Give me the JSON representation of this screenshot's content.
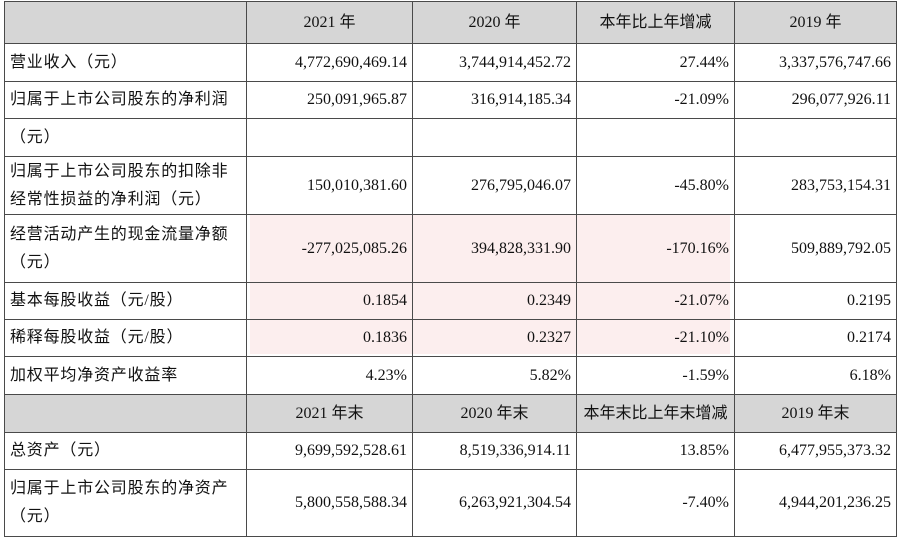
{
  "sections": [
    {
      "header": [
        "2021 年",
        "2020 年",
        "本年比上年增减",
        "2019 年"
      ],
      "rows": [
        [
          "营业收入（元）",
          "4,772,690,469.14",
          "3,744,914,452.72",
          "27.44%",
          "3,337,576,747.66"
        ],
        [
          "归属于上市公司股东的净利润",
          "250,091,965.87",
          "316,914,185.34",
          "-21.09%",
          "296,077,926.11"
        ],
        [
          "（元）"
        ],
        [
          "归属于上市公司股东的扣除非经常性损益的净利润（元）",
          "150,010,381.60",
          "276,795,046.07",
          "-45.80%",
          "283,753,154.31"
        ],
        [
          "经营活动产生的现金流量净额（元）",
          "-277,025,085.26",
          "394,828,331.90",
          "-170.16%",
          "509,889,792.05"
        ],
        [
          "基本每股收益（元/股）",
          "0.1854",
          "0.2349",
          "-21.07%",
          "0.2195"
        ],
        [
          "稀释每股收益（元/股）",
          "0.1836",
          "0.2327",
          "-21.10%",
          "0.2174"
        ],
        [
          "加权平均净资产收益率",
          "4.23%",
          "5.82%",
          "-1.59%",
          "6.18%"
        ]
      ]
    },
    {
      "header": [
        "2021 年末",
        "2020 年末",
        "本年末比上年末增减",
        "2019 年末"
      ],
      "rows": [
        [
          "总资产（元）",
          "9,699,592,528.61",
          "8,519,336,914.11",
          "13.85%",
          "6,477,955,373.32"
        ],
        [
          "归属于上市公司股东的净资产（元）",
          "5,800,558,588.34",
          "6,263,921,304.54",
          "-7.40%",
          "4,944,201,236.25"
        ]
      ]
    }
  ]
}
